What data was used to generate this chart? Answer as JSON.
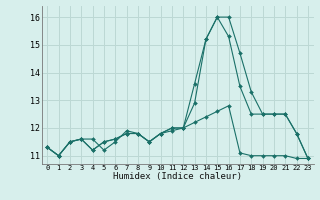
{
  "title": "",
  "xlabel": "Humidex (Indice chaleur)",
  "background_color": "#d7efec",
  "grid_color": "#bcd8d4",
  "line_color": "#1a7068",
  "x_values": [
    0,
    1,
    2,
    3,
    4,
    5,
    6,
    7,
    8,
    9,
    10,
    11,
    12,
    13,
    14,
    15,
    16,
    17,
    18,
    19,
    20,
    21,
    22,
    23
  ],
  "series1": [
    11.3,
    11.0,
    11.5,
    11.6,
    11.2,
    11.5,
    11.6,
    11.8,
    11.8,
    11.5,
    11.8,
    12.0,
    12.0,
    12.9,
    15.2,
    16.0,
    15.3,
    13.5,
    12.5,
    12.5,
    12.5,
    12.5,
    11.8,
    10.9
  ],
  "series2": [
    11.3,
    11.0,
    11.5,
    11.6,
    11.6,
    11.2,
    11.5,
    11.9,
    11.8,
    11.5,
    11.8,
    12.0,
    12.0,
    13.6,
    15.2,
    16.0,
    16.0,
    14.7,
    13.3,
    12.5,
    12.5,
    12.5,
    11.8,
    10.9
  ],
  "series3": [
    11.3,
    11.0,
    11.5,
    11.6,
    11.2,
    11.5,
    11.6,
    11.8,
    11.8,
    11.5,
    11.8,
    11.9,
    12.0,
    12.2,
    12.4,
    12.6,
    12.8,
    11.1,
    11.0,
    11.0,
    11.0,
    11.0,
    10.9,
    10.9
  ],
  "xlim": [
    -0.5,
    23.5
  ],
  "ylim": [
    10.7,
    16.4
  ],
  "yticks": [
    11,
    12,
    13,
    14,
    15,
    16
  ],
  "xticks": [
    0,
    1,
    2,
    3,
    4,
    5,
    6,
    7,
    8,
    9,
    10,
    11,
    12,
    13,
    14,
    15,
    16,
    17,
    18,
    19,
    20,
    21,
    22,
    23
  ]
}
